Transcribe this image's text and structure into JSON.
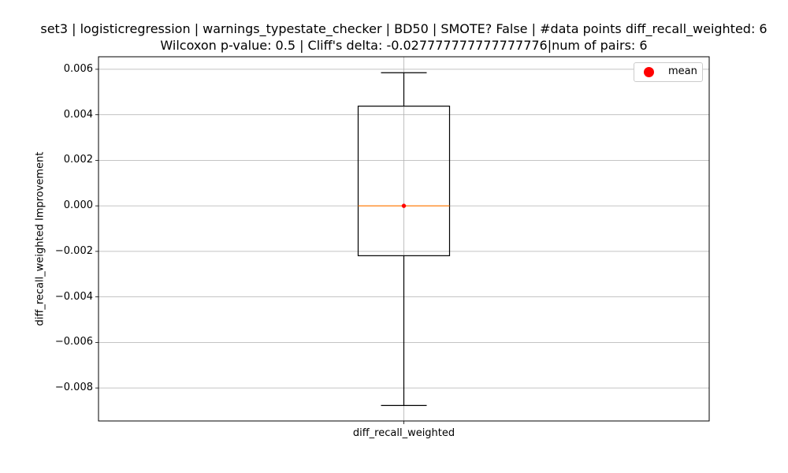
{
  "chart_data": {
    "type": "box",
    "title": "set3 | logisticregression | warnings_typestate_checker | BD50 | SMOTE? False | #data points diff_recall_weighted: 6",
    "subtitle": "Wilcoxon p-value: 0.5 | Cliff's delta: -0.027777777777777776|num of pairs: 6",
    "xlabel": "",
    "ylabel": "diff_recall_weighted Improvement",
    "categories": [
      "diff_recall_weighted"
    ],
    "boxes": [
      {
        "category": "diff_recall_weighted",
        "whisker_low": -0.00877,
        "q1": -0.00219,
        "median": 0.0,
        "q3": 0.00438,
        "whisker_high": 0.00585,
        "mean": 0.0
      }
    ],
    "ylim": [
      -0.00945,
      0.00655
    ],
    "yticks": [
      0.006,
      0.004,
      0.002,
      0.0,
      -0.002,
      -0.004,
      -0.006,
      -0.008
    ],
    "ytick_labels": [
      "0.006",
      "0.004",
      "0.002",
      "0.000",
      "−0.002",
      "−0.004",
      "−0.006",
      "−0.008"
    ],
    "grid": true,
    "legend": {
      "position": "top-right",
      "entries": [
        {
          "label": "mean",
          "marker": "circle",
          "color": "#ff0000"
        }
      ]
    },
    "colors": {
      "box": "#000000",
      "median": "#ff7f0e",
      "mean": "#ff0000",
      "grid": "#b0b0b0"
    }
  }
}
